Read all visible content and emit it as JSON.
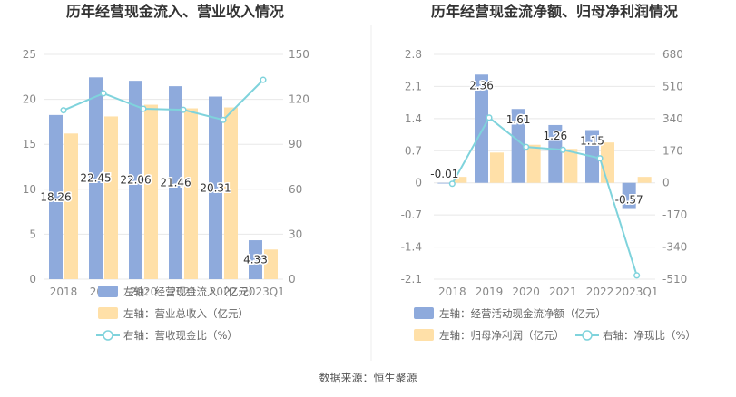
{
  "colors": {
    "blue_bar": "#8EAADC",
    "orange_bar": "#FFE0A8",
    "line": "#7FD3DC",
    "axis_text": "#888888",
    "grid": "#E8E8E8",
    "title": "#333333"
  },
  "footer": {
    "source": "数据来源：恒生聚源"
  },
  "chart_data": [
    {
      "type": "bar+line",
      "title": "历年经营现金流入、营业收入情况",
      "categories": [
        "2018",
        "2019",
        "2020",
        "2021",
        "2022",
        "2023Q1"
      ],
      "left_axis": {
        "ylim": [
          0,
          25
        ],
        "ticks": [
          0,
          5,
          10,
          15,
          20,
          25
        ]
      },
      "right_axis": {
        "ylim": [
          0,
          150
        ],
        "ticks": [
          0,
          30,
          60,
          90,
          120,
          150
        ]
      },
      "series": [
        {
          "name": "左轴：经营现金流入（亿元）",
          "type": "bar",
          "axis": "left",
          "color": "#8EAADC",
          "values": [
            18.26,
            22.45,
            22.06,
            21.46,
            20.31,
            4.33
          ],
          "labels": [
            "18.26",
            "22.45",
            "22.06",
            "21.46",
            "20.31",
            "4.33"
          ]
        },
        {
          "name": "左轴：营业总收入（亿元）",
          "type": "bar",
          "axis": "left",
          "color": "#FFE0A8",
          "values": [
            16.2,
            18.1,
            19.4,
            19.0,
            19.1,
            3.3
          ]
        },
        {
          "name": "右轴：营收现金比（%）",
          "type": "line",
          "axis": "right",
          "color": "#7FD3DC",
          "values": [
            112.7,
            124.0,
            113.7,
            113.0,
            106.3,
            133.0
          ]
        }
      ]
    },
    {
      "type": "bar+line",
      "title": "历年经营现金流净额、归母净利润情况",
      "categories": [
        "2018",
        "2019",
        "2020",
        "2021",
        "2022",
        "2023Q1"
      ],
      "left_axis": {
        "ylim": [
          -2.1,
          2.8
        ],
        "ticks": [
          2.8,
          2.1,
          1.4,
          0.7,
          0,
          -0.7,
          -1.4,
          -2.1
        ],
        "tick_labels": [
          "2.8",
          "2.1",
          "1.4",
          "0.7",
          "0",
          "-0.7",
          "-1.4",
          "-2.1"
        ]
      },
      "right_axis": {
        "ylim": [
          -510,
          680
        ],
        "ticks": [
          680,
          510,
          340,
          170,
          0,
          -170,
          -340,
          -510
        ],
        "tick_labels": [
          "680",
          "510",
          "340",
          "170",
          "0",
          "-170",
          "-340",
          "-510"
        ]
      },
      "series": [
        {
          "name": "左轴：经营活动现金流净额（亿元）",
          "type": "bar",
          "axis": "left",
          "color": "#8EAADC",
          "values": [
            -0.01,
            2.36,
            1.61,
            1.26,
            1.15,
            -0.57
          ],
          "labels": [
            "-0.01",
            "2.36",
            "1.61",
            "1.26",
            "1.15",
            "-0.57"
          ]
        },
        {
          "name": "左轴：归母净利润（亿元）",
          "type": "bar",
          "axis": "left",
          "color": "#FFE0A8",
          "values": [
            0.13,
            0.66,
            0.83,
            0.74,
            0.88,
            0.13
          ]
        },
        {
          "name": "右轴：净现比（%）",
          "type": "line",
          "axis": "right",
          "color": "#7FD3DC",
          "values": [
            -5,
            345,
            190,
            175,
            130,
            -490
          ]
        }
      ]
    }
  ]
}
